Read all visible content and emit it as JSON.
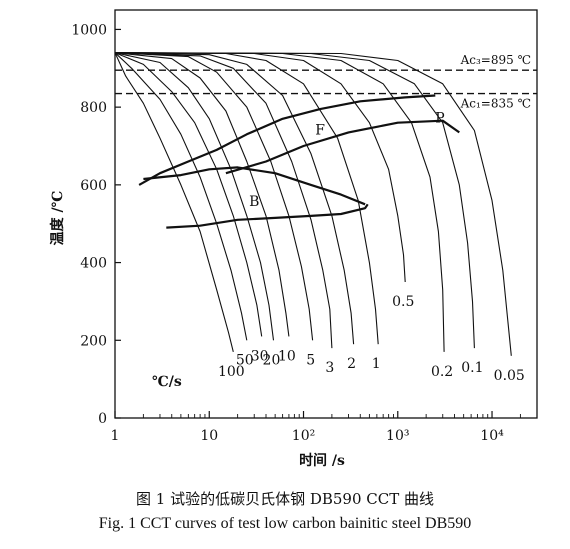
{
  "chart_data": {
    "type": "line",
    "xlabel": "时间 /s",
    "ylabel": "温度 /℃",
    "x_scale": "log",
    "xlim": [
      1,
      30000
    ],
    "ylim": [
      0,
      1050
    ],
    "x_ticks": [
      {
        "value": 1,
        "label": "1"
      },
      {
        "value": 10,
        "label": "10"
      },
      {
        "value": 100,
        "label": "10²"
      },
      {
        "value": 1000,
        "label": "10³"
      },
      {
        "value": 10000,
        "label": "10⁴"
      }
    ],
    "y_ticks": [
      0,
      200,
      400,
      600,
      800,
      1000
    ],
    "grid": false,
    "reference_lines": [
      {
        "y": 895,
        "label": "Ac₃=895 ℃",
        "style": "dashed"
      },
      {
        "y": 835,
        "label": "Ac₁=835 ℃",
        "style": "dashed"
      }
    ],
    "region_labels": [
      {
        "text": "F",
        "x": 150,
        "y": 730
      },
      {
        "text": "P",
        "x": 2800,
        "y": 760
      },
      {
        "text": "B",
        "x": 30,
        "y": 545
      }
    ],
    "rate_unit_label": "℃/s",
    "cooling_curves": [
      {
        "rate": "100",
        "points": [
          [
            1,
            940
          ],
          [
            1.3,
            880
          ],
          [
            2,
            810
          ],
          [
            3,
            720
          ],
          [
            5,
            600
          ],
          [
            8,
            480
          ],
          [
            12,
            330
          ],
          [
            16,
            220
          ],
          [
            18,
            170
          ]
        ]
      },
      {
        "rate": "50",
        "points": [
          [
            1,
            940
          ],
          [
            1.5,
            900
          ],
          [
            3,
            820
          ],
          [
            5,
            730
          ],
          [
            8,
            620
          ],
          [
            12,
            500
          ],
          [
            17,
            380
          ],
          [
            22,
            270
          ],
          [
            25,
            200
          ]
        ]
      },
      {
        "rate": "30",
        "points": [
          [
            1,
            940
          ],
          [
            2,
            910
          ],
          [
            4,
            840
          ],
          [
            7,
            760
          ],
          [
            12,
            640
          ],
          [
            18,
            520
          ],
          [
            25,
            400
          ],
          [
            32,
            290
          ],
          [
            36,
            210
          ]
        ]
      },
      {
        "rate": "20",
        "points": [
          [
            1,
            940
          ],
          [
            3,
            915
          ],
          [
            6,
            850
          ],
          [
            10,
            770
          ],
          [
            17,
            640
          ],
          [
            25,
            520
          ],
          [
            35,
            400
          ],
          [
            43,
            290
          ],
          [
            48,
            200
          ]
        ]
      },
      {
        "rate": "10",
        "points": [
          [
            1,
            940
          ],
          [
            4,
            925
          ],
          [
            8,
            875
          ],
          [
            15,
            790
          ],
          [
            25,
            660
          ],
          [
            40,
            520
          ],
          [
            55,
            380
          ],
          [
            65,
            270
          ],
          [
            70,
            210
          ]
        ]
      },
      {
        "rate": "5",
        "points": [
          [
            1,
            940
          ],
          [
            6,
            930
          ],
          [
            12,
            890
          ],
          [
            25,
            800
          ],
          [
            45,
            660
          ],
          [
            70,
            520
          ],
          [
            95,
            390
          ],
          [
            115,
            280
          ],
          [
            125,
            200
          ]
        ]
      },
      {
        "rate": "3",
        "points": [
          [
            1,
            940
          ],
          [
            8,
            932
          ],
          [
            18,
            900
          ],
          [
            40,
            810
          ],
          [
            75,
            660
          ],
          [
            120,
            510
          ],
          [
            160,
            380
          ],
          [
            190,
            280
          ],
          [
            200,
            180
          ]
        ]
      },
      {
        "rate": "2",
        "points": [
          [
            1,
            940
          ],
          [
            10,
            935
          ],
          [
            25,
            910
          ],
          [
            60,
            830
          ],
          [
            120,
            680
          ],
          [
            200,
            520
          ],
          [
            270,
            380
          ],
          [
            320,
            270
          ],
          [
            340,
            190
          ]
        ]
      },
      {
        "rate": "1",
        "points": [
          [
            1,
            940
          ],
          [
            15,
            938
          ],
          [
            40,
            920
          ],
          [
            100,
            860
          ],
          [
            230,
            720
          ],
          [
            380,
            560
          ],
          [
            500,
            400
          ],
          [
            580,
            280
          ],
          [
            620,
            190
          ]
        ]
      },
      {
        "rate": "0.5",
        "points": [
          [
            1,
            940
          ],
          [
            30,
            938
          ],
          [
            100,
            920
          ],
          [
            250,
            860
          ],
          [
            500,
            760
          ],
          [
            800,
            640
          ],
          [
            1000,
            520
          ],
          [
            1150,
            420
          ],
          [
            1200,
            350
          ]
        ]
      },
      {
        "rate": "0.2",
        "points": [
          [
            1,
            940
          ],
          [
            60,
            938
          ],
          [
            250,
            920
          ],
          [
            700,
            860
          ],
          [
            1400,
            760
          ],
          [
            2200,
            620
          ],
          [
            2700,
            480
          ],
          [
            3000,
            330
          ],
          [
            3100,
            170
          ]
        ]
      },
      {
        "rate": "0.1",
        "points": [
          [
            1,
            940
          ],
          [
            120,
            938
          ],
          [
            500,
            920
          ],
          [
            1500,
            860
          ],
          [
            3000,
            760
          ],
          [
            4500,
            600
          ],
          [
            5500,
            450
          ],
          [
            6200,
            300
          ],
          [
            6500,
            180
          ]
        ]
      },
      {
        "rate": "0.05",
        "points": [
          [
            1,
            940
          ],
          [
            250,
            938
          ],
          [
            1000,
            920
          ],
          [
            3000,
            860
          ],
          [
            6500,
            740
          ],
          [
            10000,
            560
          ],
          [
            13000,
            380
          ],
          [
            15000,
            230
          ],
          [
            16000,
            160
          ]
        ]
      }
    ],
    "transformation_boundaries": [
      {
        "name": "F-start",
        "points": [
          [
            1.8,
            600
          ],
          [
            3,
            630
          ],
          [
            6,
            660
          ],
          [
            12,
            690
          ],
          [
            25,
            730
          ],
          [
            60,
            770
          ],
          [
            150,
            795
          ],
          [
            400,
            815
          ],
          [
            1200,
            825
          ],
          [
            2500,
            830
          ]
        ]
      },
      {
        "name": "P-curve",
        "points": [
          [
            15,
            630
          ],
          [
            40,
            660
          ],
          [
            100,
            700
          ],
          [
            300,
            735
          ],
          [
            1000,
            760
          ],
          [
            3000,
            765
          ],
          [
            4500,
            735
          ]
        ]
      },
      {
        "name": "B-upper",
        "points": [
          [
            2,
            615
          ],
          [
            5,
            625
          ],
          [
            10,
            640
          ],
          [
            20,
            645
          ],
          [
            50,
            630
          ],
          [
            120,
            600
          ],
          [
            250,
            575
          ],
          [
            450,
            550
          ]
        ]
      },
      {
        "name": "B-lower",
        "points": [
          [
            3.5,
            490
          ],
          [
            8,
            495
          ],
          [
            20,
            510
          ],
          [
            50,
            515
          ],
          [
            120,
            520
          ],
          [
            250,
            525
          ],
          [
            450,
            540
          ],
          [
            480,
            550
          ]
        ]
      }
    ]
  },
  "caption_cn": "图 1   试验的低碳贝氏体钢 DB590 CCT 曲线",
  "caption_en": "Fig. 1   CCT curves of test low carbon bainitic steel DB590"
}
